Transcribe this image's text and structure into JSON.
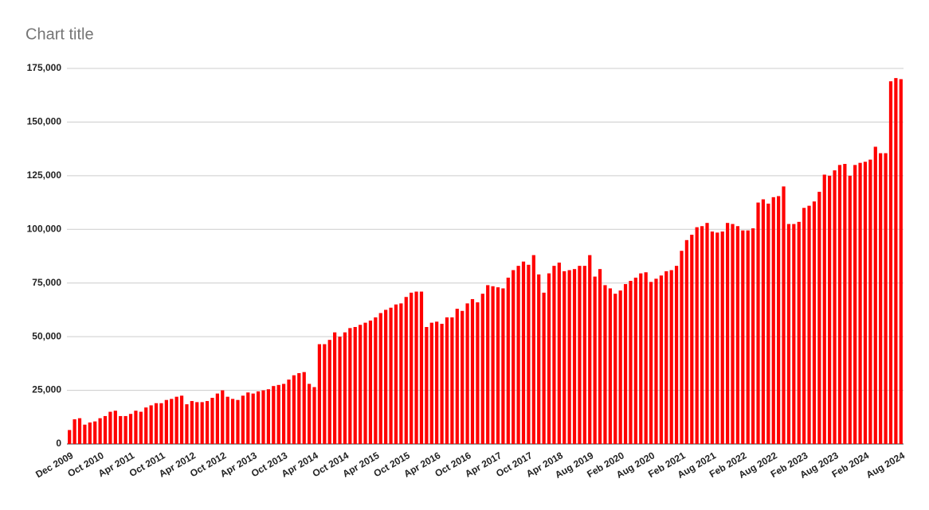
{
  "chart_data": {
    "type": "bar",
    "title": "Chart title",
    "categories": [
      "Dec 2009",
      null,
      null,
      null,
      null,
      null,
      "Oct 2010",
      null,
      null,
      null,
      null,
      null,
      "Apr 2011",
      null,
      null,
      null,
      null,
      null,
      "Oct 2011",
      null,
      null,
      null,
      null,
      null,
      "Apr 2012",
      null,
      null,
      null,
      null,
      null,
      "Oct 2012",
      null,
      null,
      null,
      null,
      null,
      "Apr 2013",
      null,
      null,
      null,
      null,
      null,
      "Oct 2013",
      null,
      null,
      null,
      null,
      null,
      "Apr 2014",
      null,
      null,
      null,
      null,
      null,
      "Oct 2014",
      null,
      null,
      null,
      null,
      null,
      "Apr 2015",
      null,
      null,
      null,
      null,
      null,
      "Oct 2015",
      null,
      null,
      null,
      null,
      null,
      "Apr 2016",
      null,
      null,
      null,
      null,
      null,
      "Oct 2016",
      null,
      null,
      null,
      null,
      null,
      "Apr 2017",
      null,
      null,
      null,
      null,
      null,
      "Oct 2017",
      null,
      null,
      null,
      null,
      null,
      "Apr 2018",
      null,
      null,
      null,
      null,
      null,
      "Aug 2019",
      null,
      null,
      null,
      null,
      null,
      "Feb 2020",
      null,
      null,
      null,
      null,
      null,
      "Aug 2020",
      null,
      null,
      null,
      null,
      null,
      "Feb 2021",
      null,
      null,
      null,
      null,
      null,
      "Aug 2021",
      null,
      null,
      null,
      null,
      null,
      "Feb 2022",
      null,
      null,
      null,
      null,
      null,
      "Aug 2022",
      null,
      null,
      null,
      null,
      null,
      "Feb 2023",
      null,
      null,
      null,
      null,
      null,
      "Aug 2023",
      null,
      null,
      null,
      null,
      null,
      "Feb 2024",
      null,
      null,
      null,
      null,
      null,
      null,
      "Aug 2024"
    ],
    "values": [
      6500,
      11500,
      12000,
      9000,
      10000,
      10500,
      12000,
      13000,
      15000,
      15500,
      13000,
      13000,
      14000,
      15500,
      15000,
      17000,
      18000,
      19000,
      19000,
      20500,
      21000,
      22000,
      22500,
      18500,
      20000,
      19500,
      19500,
      20000,
      21500,
      23500,
      25000,
      22000,
      21000,
      20500,
      22500,
      24000,
      23500,
      24500,
      25000,
      25500,
      27000,
      27500,
      28000,
      30000,
      32000,
      33000,
      33500,
      28000,
      26500,
      46500,
      46500,
      48500,
      52000,
      50000,
      52000,
      54000,
      54500,
      55500,
      56500,
      57500,
      59000,
      61000,
      62500,
      63500,
      65000,
      65500,
      68500,
      70500,
      71000,
      71000,
      54500,
      56500,
      57000,
      56000,
      59000,
      59000,
      63000,
      62000,
      65500,
      67500,
      66000,
      70000,
      74000,
      73500,
      73000,
      72500,
      77500,
      81000,
      83000,
      85000,
      83500,
      88000,
      79000,
      70500,
      79500,
      83000,
      84500,
      80500,
      81000,
      81500,
      83000,
      83000,
      88000,
      78000,
      81500,
      74000,
      72500,
      70000,
      71500,
      74500,
      76000,
      77500,
      79500,
      80000,
      75500,
      77000,
      78500,
      80500,
      81000,
      83000,
      90000,
      95000,
      97500,
      101000,
      101500,
      103000,
      99000,
      98500,
      99000,
      103000,
      102500,
      101500,
      99500,
      99500,
      100500,
      112500,
      114000,
      112000,
      115000,
      115500,
      120000,
      102500,
      102500,
      103500,
      110000,
      111000,
      113000,
      117500,
      125500,
      125000,
      127500,
      130000,
      130500,
      125000,
      130000,
      131000,
      131500,
      132500,
      138500,
      135500,
      135500,
      169000,
      170500,
      170000
    ],
    "color": "#ff0000",
    "ylim": [
      0,
      175000
    ],
    "yticks": [
      0,
      {
        "value": 25000,
        "label": "25,000"
      },
      {
        "value": 50000,
        "label": "50,000"
      },
      {
        "value": 75000,
        "label": "75,000"
      },
      {
        "value": 100000,
        "label": "100,000"
      },
      {
        "value": 125000,
        "label": "125,000"
      },
      {
        "value": 150000,
        "label": "150,000"
      },
      {
        "value": 175000,
        "label": "175,000"
      }
    ],
    "grid": true
  }
}
